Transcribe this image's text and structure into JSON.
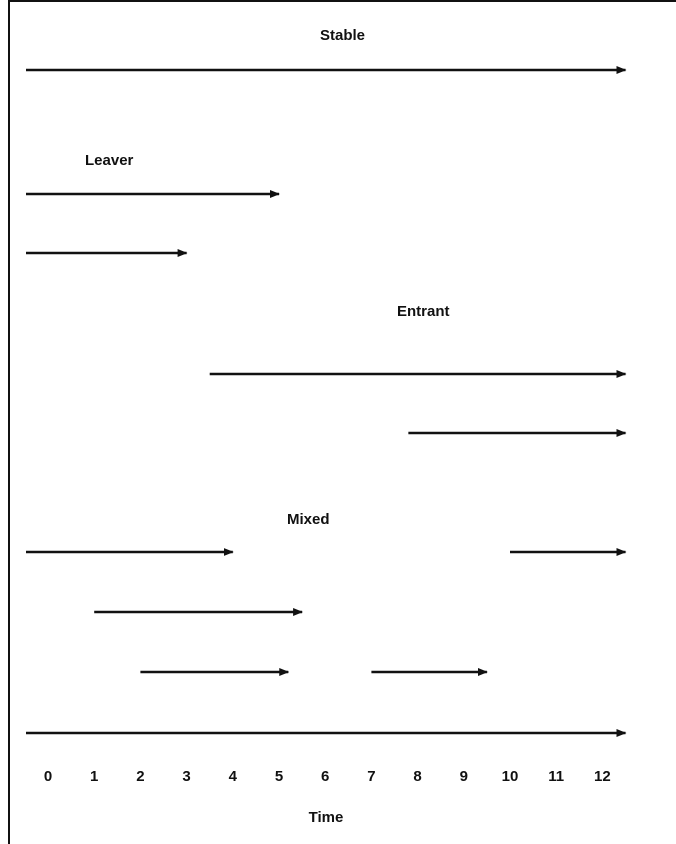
{
  "chart_data": {
    "type": "diagram",
    "xlabel": "Time",
    "ticks": [
      "0",
      "1",
      "2",
      "3",
      "4",
      "5",
      "6",
      "7",
      "8",
      "9",
      "10",
      "11",
      "12"
    ],
    "groups": [
      {
        "name": "Stable",
        "segments": [
          {
            "start": 0,
            "end": 12.5
          }
        ]
      },
      {
        "name": "Leaver",
        "segments": [
          {
            "start": 0,
            "end": 5
          },
          {
            "start": 0,
            "end": 3
          }
        ]
      },
      {
        "name": "Entrant",
        "segments": [
          {
            "start": 3.5,
            "end": 12.5
          },
          {
            "start": 7.8,
            "end": 12.5
          }
        ]
      },
      {
        "name": "Mixed",
        "segments": [
          {
            "start": 0,
            "end": 4
          },
          {
            "start": 10,
            "end": 12.5
          },
          {
            "start": 1,
            "end": 5.5
          },
          {
            "start": 2,
            "end": 5.2
          },
          {
            "start": 7,
            "end": 9.5
          },
          {
            "start": 0,
            "end": 12.5
          }
        ]
      }
    ]
  }
}
